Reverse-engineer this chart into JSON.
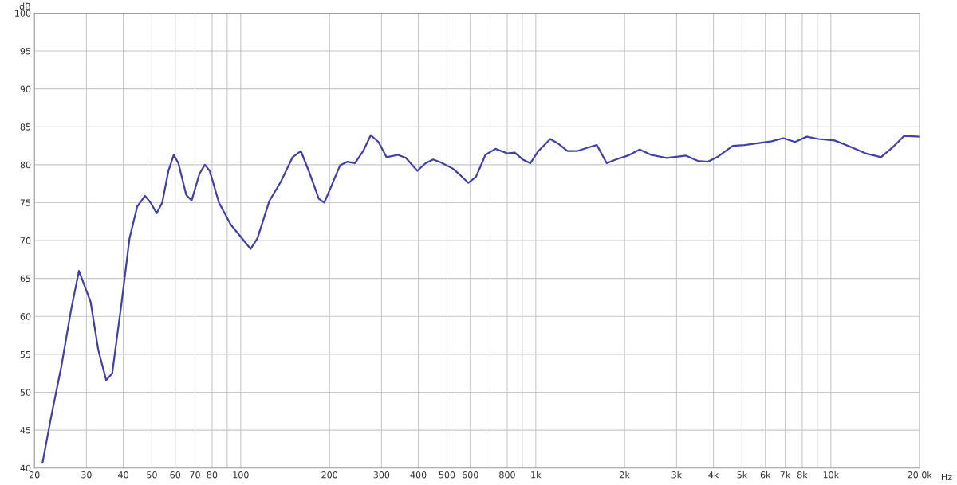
{
  "chart_data": {
    "type": "line",
    "xlabel": "Hz",
    "ylabel": "dB",
    "log": "x",
    "grid": true,
    "marker": "none",
    "line_style": "solid",
    "xlim": [
      20,
      20000
    ],
    "ylim": [
      40,
      100
    ],
    "xticks": [
      20,
      30,
      40,
      50,
      60,
      70,
      80,
      {
        "value": 90,
        "label": null
      },
      100,
      200,
      300,
      400,
      500,
      600,
      {
        "value": 700,
        "label": null
      },
      800,
      {
        "value": 900,
        "label": null
      },
      {
        "value": 1000,
        "label": "1k"
      },
      {
        "value": 2000,
        "label": "2k"
      },
      {
        "value": 3000,
        "label": "3k"
      },
      {
        "value": 4000,
        "label": "4k"
      },
      {
        "value": 5000,
        "label": "5k"
      },
      {
        "value": 6000,
        "label": "6k"
      },
      {
        "value": 7000,
        "label": "7k"
      },
      {
        "value": 8000,
        "label": "8k"
      },
      {
        "value": 9000,
        "label": null
      },
      {
        "value": 10000,
        "label": "10k"
      },
      {
        "value": 20000,
        "label": "20.0k"
      }
    ],
    "yticks": [
      40,
      45,
      50,
      55,
      60,
      65,
      70,
      75,
      80,
      85,
      90,
      95,
      100
    ],
    "x": [
      21.3,
      22.9,
      24.7,
      26.6,
      28.3,
      31,
      32.9,
      35,
      36.7,
      39.5,
      42,
      44.6,
      47.4,
      49.5,
      51.9,
      54.2,
      56.9,
      59.3,
      61.5,
      65.4,
      68.2,
      72.5,
      75.6,
      78.5,
      84.4,
      92.5,
      101,
      108,
      114,
      125,
      137,
      150,
      160,
      170,
      184,
      192,
      204,
      217,
      230,
      244,
      260,
      276,
      293,
      312,
      341,
      363,
      397,
      423,
      449,
      477,
      523,
      556,
      591,
      627,
      675,
      730,
      800,
      849,
      902,
      959,
      1020,
      1120,
      1190,
      1280,
      1380,
      1510,
      1610,
      1740,
      1870,
      2050,
      2250,
      2460,
      2780,
      3230,
      3540,
      3830,
      4120,
      4650,
      5100,
      5580,
      6300,
      6900,
      7560,
      8290,
      9080,
      10300,
      11600,
      13100,
      14800,
      16200,
      17700,
      20000
    ],
    "series": [
      {
        "color": "#4040a8",
        "values": [
          40.7,
          47.2,
          53.5,
          60.8,
          66.0,
          61.9,
          55.6,
          51.6,
          52.5,
          61.9,
          70.3,
          74.5,
          75.9,
          75.0,
          73.6,
          75.0,
          79.2,
          81.3,
          80.2,
          76.0,
          75.3,
          78.8,
          80.0,
          79.2,
          75.0,
          72.1,
          70.3,
          68.9,
          70.3,
          75.2,
          77.8,
          81.0,
          81.8,
          79.2,
          75.5,
          75.0,
          77.4,
          79.9,
          80.4,
          80.2,
          81.8,
          83.9,
          83.0,
          81.0,
          81.3,
          80.9,
          79.2,
          80.2,
          80.7,
          80.3,
          79.5,
          78.6,
          77.6,
          78.4,
          81.3,
          82.1,
          81.5,
          81.6,
          80.7,
          80.2,
          81.8,
          83.4,
          82.8,
          81.8,
          81.8,
          82.3,
          82.6,
          80.2,
          80.7,
          81.2,
          82.0,
          81.3,
          80.9,
          81.2,
          80.5,
          80.4,
          81.0,
          82.5,
          82.6,
          82.8,
          83.1,
          83.5,
          83.0,
          83.7,
          83.4,
          83.2,
          82.4,
          81.5,
          81.0,
          82.3,
          83.8,
          83.7
        ]
      }
    ]
  }
}
